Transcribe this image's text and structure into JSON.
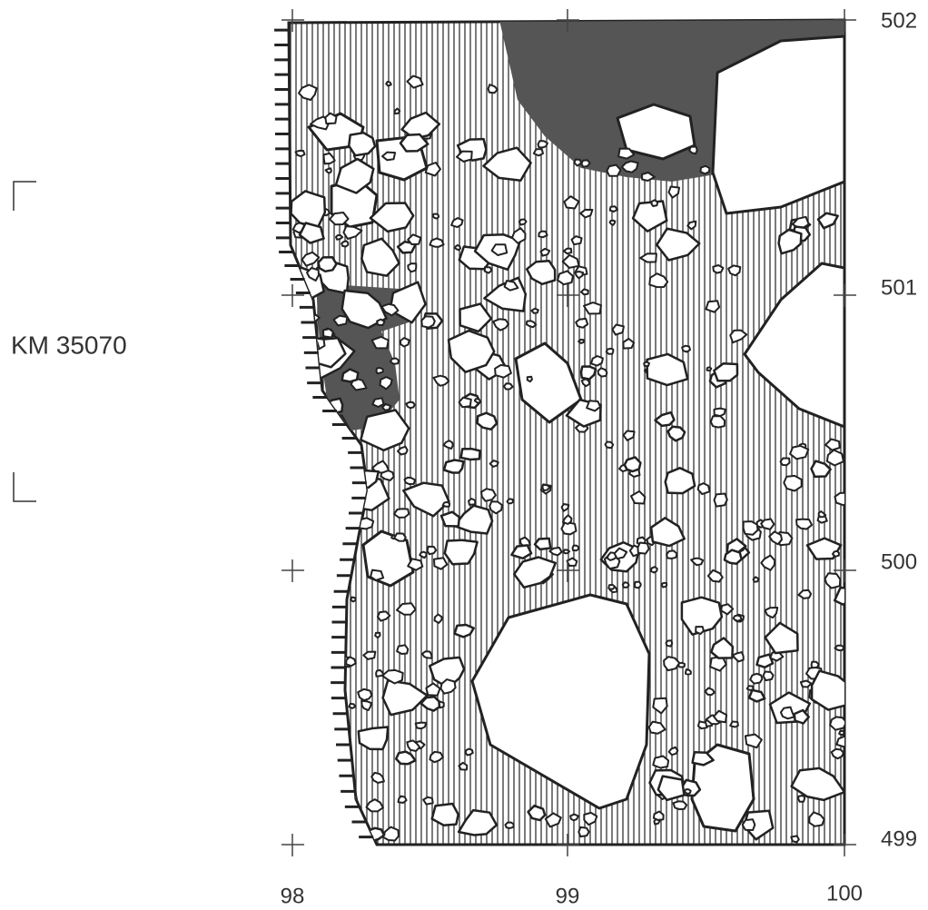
{
  "section_label": "KM 35070",
  "grid": {
    "y_labels": [
      "502",
      "501",
      "500",
      "499"
    ],
    "x_labels": [
      "98",
      "99",
      "100"
    ]
  }
}
